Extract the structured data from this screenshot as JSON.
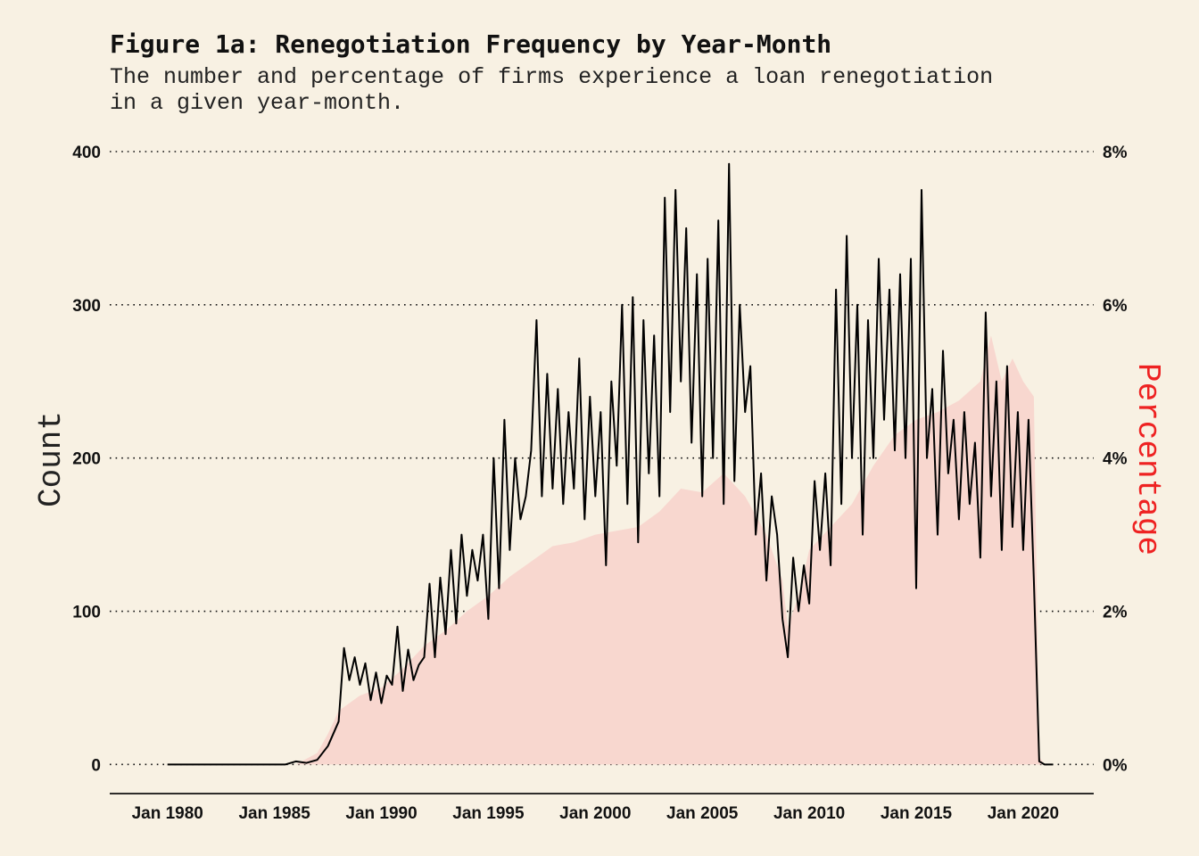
{
  "chart_data": {
    "type": "line",
    "title": "Figure 1a: Renegotiation Frequency by Year-Month",
    "subtitle_lines": [
      "The number and percentage of firms experience a loan renegotiation",
      "in a given year-month."
    ],
    "ylabel": "Count",
    "ylabel_right": "Percentage",
    "xlabel": "",
    "x_tick_labels": [
      "Jan 1980",
      "Jan 1985",
      "Jan 1990",
      "Jan 1995",
      "Jan 2000",
      "Jan 2005",
      "Jan 2010",
      "Jan 2015",
      "Jan 2020"
    ],
    "x_tick_years": [
      1980,
      1985,
      1990,
      1995,
      2000,
      2005,
      2010,
      2015,
      2020
    ],
    "xlim": [
      1977.3,
      2023.3
    ],
    "ylim": [
      -19,
      400
    ],
    "ylim_right_pct": [
      -0.38,
      8
    ],
    "y_ticks": [
      0,
      100,
      200,
      300,
      400
    ],
    "y_tick_labels": [
      "0",
      "100",
      "200",
      "300",
      "400"
    ],
    "y_ticks_right": [
      0,
      2,
      4,
      6,
      8
    ],
    "y_tick_labels_right": [
      "0%",
      "2%",
      "4%",
      "6%",
      "8%"
    ],
    "grid_horizontal": true,
    "colors": {
      "count_line": "#000000",
      "percentage_area": "#f8d7cf",
      "right_axis_title": "#ee2222",
      "background": "#f8f1e3"
    },
    "series": [
      {
        "name": "Count",
        "kind": "line",
        "axis": "left",
        "points": [
          [
            1980.0,
            0
          ],
          [
            1984.0,
            0
          ],
          [
            1985.5,
            0
          ],
          [
            1986.0,
            2
          ],
          [
            1986.5,
            1
          ],
          [
            1987.0,
            3
          ],
          [
            1987.5,
            12
          ],
          [
            1988.0,
            28
          ],
          [
            1988.25,
            76
          ],
          [
            1988.5,
            55
          ],
          [
            1988.75,
            70
          ],
          [
            1989.0,
            52
          ],
          [
            1989.25,
            66
          ],
          [
            1989.5,
            42
          ],
          [
            1989.75,
            60
          ],
          [
            1990.0,
            40
          ],
          [
            1990.25,
            58
          ],
          [
            1990.5,
            52
          ],
          [
            1990.75,
            90
          ],
          [
            1991.0,
            48
          ],
          [
            1991.25,
            75
          ],
          [
            1991.5,
            55
          ],
          [
            1991.75,
            65
          ],
          [
            1992.0,
            70
          ],
          [
            1992.25,
            118
          ],
          [
            1992.5,
            70
          ],
          [
            1992.75,
            122
          ],
          [
            1993.0,
            85
          ],
          [
            1993.25,
            140
          ],
          [
            1993.5,
            92
          ],
          [
            1993.75,
            150
          ],
          [
            1994.0,
            110
          ],
          [
            1994.25,
            140
          ],
          [
            1994.5,
            120
          ],
          [
            1994.75,
            150
          ],
          [
            1995.0,
            95
          ],
          [
            1995.25,
            200
          ],
          [
            1995.5,
            115
          ],
          [
            1995.75,
            225
          ],
          [
            1996.0,
            140
          ],
          [
            1996.25,
            200
          ],
          [
            1996.5,
            160
          ],
          [
            1996.75,
            175
          ],
          [
            1997.0,
            205
          ],
          [
            1997.25,
            290
          ],
          [
            1997.5,
            175
          ],
          [
            1997.75,
            255
          ],
          [
            1998.0,
            180
          ],
          [
            1998.25,
            245
          ],
          [
            1998.5,
            170
          ],
          [
            1998.75,
            230
          ],
          [
            1999.0,
            180
          ],
          [
            1999.25,
            265
          ],
          [
            1999.5,
            160
          ],
          [
            1999.75,
            240
          ],
          [
            2000.0,
            175
          ],
          [
            2000.25,
            230
          ],
          [
            2000.5,
            130
          ],
          [
            2000.75,
            250
          ],
          [
            2001.0,
            195
          ],
          [
            2001.25,
            300
          ],
          [
            2001.5,
            170
          ],
          [
            2001.75,
            305
          ],
          [
            2002.0,
            145
          ],
          [
            2002.25,
            290
          ],
          [
            2002.5,
            190
          ],
          [
            2002.75,
            280
          ],
          [
            2003.0,
            175
          ],
          [
            2003.25,
            370
          ],
          [
            2003.5,
            230
          ],
          [
            2003.75,
            375
          ],
          [
            2004.0,
            250
          ],
          [
            2004.25,
            350
          ],
          [
            2004.5,
            210
          ],
          [
            2004.75,
            320
          ],
          [
            2005.0,
            175
          ],
          [
            2005.25,
            330
          ],
          [
            2005.5,
            200
          ],
          [
            2005.75,
            355
          ],
          [
            2006.0,
            170
          ],
          [
            2006.25,
            392
          ],
          [
            2006.5,
            185
          ],
          [
            2006.75,
            300
          ],
          [
            2007.0,
            230
          ],
          [
            2007.25,
            260
          ],
          [
            2007.5,
            150
          ],
          [
            2007.75,
            190
          ],
          [
            2008.0,
            120
          ],
          [
            2008.25,
            175
          ],
          [
            2008.5,
            150
          ],
          [
            2008.75,
            95
          ],
          [
            2009.0,
            70
          ],
          [
            2009.25,
            135
          ],
          [
            2009.5,
            100
          ],
          [
            2009.75,
            130
          ],
          [
            2010.0,
            105
          ],
          [
            2010.25,
            185
          ],
          [
            2010.5,
            140
          ],
          [
            2010.75,
            190
          ],
          [
            2011.0,
            130
          ],
          [
            2011.25,
            310
          ],
          [
            2011.5,
            170
          ],
          [
            2011.75,
            345
          ],
          [
            2012.0,
            200
          ],
          [
            2012.25,
            300
          ],
          [
            2012.5,
            150
          ],
          [
            2012.75,
            290
          ],
          [
            2013.0,
            200
          ],
          [
            2013.25,
            330
          ],
          [
            2013.5,
            225
          ],
          [
            2013.75,
            310
          ],
          [
            2014.0,
            205
          ],
          [
            2014.25,
            320
          ],
          [
            2014.5,
            200
          ],
          [
            2014.75,
            330
          ],
          [
            2015.0,
            115
          ],
          [
            2015.25,
            375
          ],
          [
            2015.5,
            200
          ],
          [
            2015.75,
            245
          ],
          [
            2016.0,
            150
          ],
          [
            2016.25,
            270
          ],
          [
            2016.5,
            190
          ],
          [
            2016.75,
            225
          ],
          [
            2017.0,
            160
          ],
          [
            2017.25,
            230
          ],
          [
            2017.5,
            170
          ],
          [
            2017.75,
            210
          ],
          [
            2018.0,
            135
          ],
          [
            2018.25,
            295
          ],
          [
            2018.5,
            175
          ],
          [
            2018.75,
            250
          ],
          [
            2019.0,
            140
          ],
          [
            2019.25,
            260
          ],
          [
            2019.5,
            155
          ],
          [
            2019.75,
            230
          ],
          [
            2020.0,
            140
          ],
          [
            2020.25,
            225
          ],
          [
            2020.5,
            120
          ],
          [
            2020.75,
            2
          ],
          [
            2021.0,
            0
          ],
          [
            2021.4,
            0
          ]
        ]
      },
      {
        "kind": "area",
        "axis": "right",
        "unit": "%",
        "points": [
          [
            1980.0,
            0
          ],
          [
            1984.0,
            0
          ],
          [
            1986.0,
            0
          ],
          [
            1987.0,
            0.15
          ],
          [
            1987.5,
            0.4
          ],
          [
            1988.0,
            0.7
          ],
          [
            1989.0,
            0.9
          ],
          [
            1990.0,
            1.0
          ],
          [
            1991.0,
            1.25
          ],
          [
            1992.0,
            1.55
          ],
          [
            1993.0,
            1.75
          ],
          [
            1994.0,
            2.0
          ],
          [
            1995.0,
            2.2
          ],
          [
            1996.0,
            2.45
          ],
          [
            1997.0,
            2.65
          ],
          [
            1998.0,
            2.85
          ],
          [
            1999.0,
            2.9
          ],
          [
            2000.0,
            3.0
          ],
          [
            2001.0,
            3.05
          ],
          [
            2002.0,
            3.1
          ],
          [
            2003.0,
            3.3
          ],
          [
            2004.0,
            3.6
          ],
          [
            2005.0,
            3.55
          ],
          [
            2006.0,
            3.8
          ],
          [
            2007.0,
            3.5
          ],
          [
            2008.0,
            3.0
          ],
          [
            2008.75,
            2.4
          ],
          [
            2009.0,
            1.8
          ],
          [
            2009.5,
            2.2
          ],
          [
            2010.0,
            2.8
          ],
          [
            2011.0,
            3.1
          ],
          [
            2012.0,
            3.4
          ],
          [
            2013.0,
            3.9
          ],
          [
            2014.0,
            4.3
          ],
          [
            2015.0,
            4.5
          ],
          [
            2016.0,
            4.6
          ],
          [
            2017.0,
            4.75
          ],
          [
            2018.0,
            5.0
          ],
          [
            2018.5,
            5.6
          ],
          [
            2019.0,
            5.0
          ],
          [
            2019.5,
            5.3
          ],
          [
            2020.0,
            5.0
          ],
          [
            2020.5,
            4.8
          ],
          [
            2020.75,
            0.1
          ],
          [
            2021.0,
            0
          ],
          [
            2021.4,
            0
          ]
        ]
      }
    ]
  }
}
